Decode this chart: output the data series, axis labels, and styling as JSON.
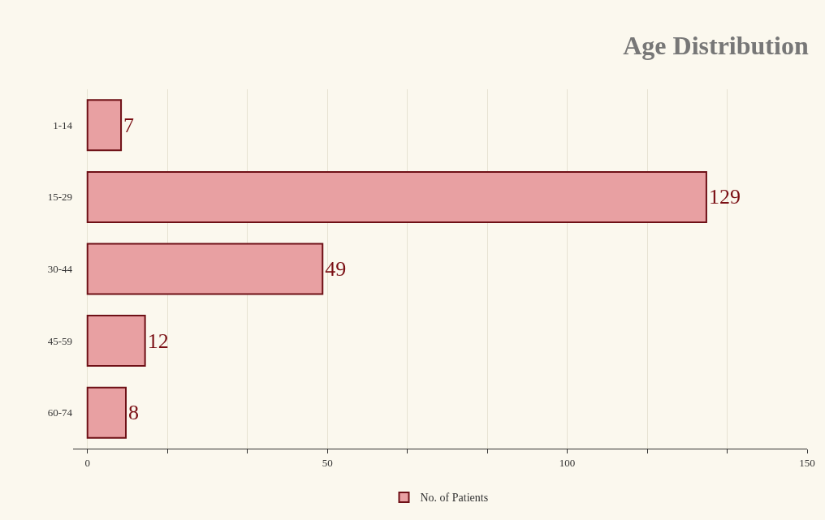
{
  "chart_data": {
    "type": "bar",
    "orientation": "horizontal",
    "title": "Age Distribution",
    "categories": [
      "1-14",
      "15-29",
      "30-44",
      "45-59",
      "60-74"
    ],
    "series": [
      {
        "name": "No. of Patients",
        "color": "#e8a0a2",
        "values": [
          7,
          129,
          49,
          12,
          8
        ]
      }
    ],
    "data_labels": true,
    "xlim": [
      -3,
      150
    ],
    "xticks": [
      0,
      {
        "value": 16.67,
        "label": null
      },
      {
        "value": 33.33,
        "label": null
      },
      50,
      {
        "value": 66.67,
        "label": null
      },
      {
        "value": 83.33,
        "label": null
      },
      100,
      {
        "value": 116.67,
        "label": null
      },
      {
        "value": 133.33,
        "label": null
      },
      150
    ],
    "grid": "x",
    "legend": "bottom"
  }
}
